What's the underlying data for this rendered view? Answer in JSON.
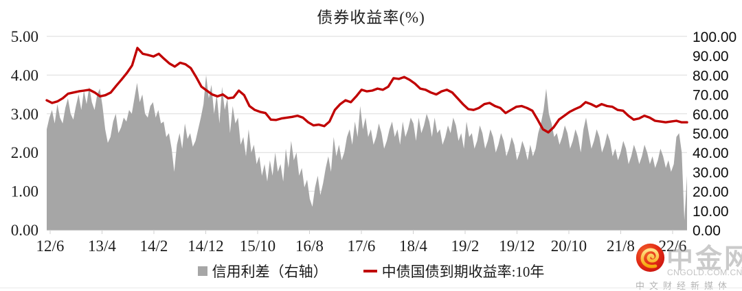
{
  "chart_data": {
    "type": "combo",
    "title": "债券收益率(%)",
    "legend_position": "bottom",
    "grid": "horizontal",
    "x_ticks": [
      "12/6",
      "13/4",
      "14/2",
      "14/12",
      "15/10",
      "16/8",
      "17/6",
      "18/4",
      "19/2",
      "19/12",
      "20/10",
      "21/8",
      "22/6"
    ],
    "left_axis": {
      "min": 0,
      "max": 5,
      "step": 1,
      "labels": [
        "5.00",
        "4.00",
        "3.00",
        "2.00",
        "1.00",
        "0.00"
      ]
    },
    "right_axis": {
      "min": 0,
      "max": 100,
      "step": 10,
      "labels": [
        "100.00",
        "90.00",
        "80.00",
        "70.00",
        "60.00",
        "50.00",
        "40.00",
        "30.00",
        "20.00",
        "10.00",
        "0.00"
      ]
    },
    "series": [
      {
        "name": "信用利差（右轴）",
        "type": "area",
        "axis": "right",
        "color": "#A6A6A6",
        "values": [
          52,
          58,
          62,
          55,
          65,
          58,
          55,
          63,
          68,
          60,
          57,
          64,
          70,
          62,
          72,
          65,
          74,
          66,
          62,
          70,
          73,
          64,
          52,
          45,
          48,
          56,
          60,
          50,
          53,
          58,
          56,
          62,
          60,
          68,
          76,
          66,
          70,
          60,
          58,
          64,
          66,
          58,
          62,
          55,
          56,
          48,
          50,
          42,
          30,
          44,
          50,
          42,
          55,
          47,
          50,
          43,
          46,
          52,
          58,
          65,
          80,
          68,
          75,
          60,
          70,
          55,
          74,
          62,
          68,
          50,
          64,
          55,
          58,
          44,
          48,
          38,
          52,
          40,
          44,
          34,
          38,
          28,
          34,
          25,
          36,
          28,
          40,
          30,
          34,
          25,
          42,
          32,
          46,
          36,
          40,
          28,
          32,
          22,
          26,
          16,
          12,
          22,
          28,
          18,
          24,
          32,
          38,
          30,
          48,
          38,
          44,
          36,
          40,
          48,
          52,
          44,
          56,
          48,
          64,
          52,
          58,
          48,
          52,
          44,
          48,
          55,
          50,
          42,
          46,
          52,
          56,
          48,
          52,
          44,
          56,
          48,
          52,
          58,
          55,
          46,
          58,
          50,
          54,
          60,
          56,
          48,
          58,
          50,
          52,
          44,
          48,
          54,
          50,
          58,
          54,
          46,
          50,
          42,
          56,
          48,
          50,
          42,
          46,
          54,
          50,
          42,
          46,
          52,
          48,
          40,
          44,
          50,
          46,
          38,
          42,
          48,
          44,
          36,
          40,
          46,
          42,
          36,
          44,
          38,
          42,
          50,
          55,
          62,
          73,
          60,
          55,
          48,
          50,
          44,
          48,
          54,
          50,
          42,
          46,
          52,
          48,
          40,
          52,
          58,
          50,
          42,
          46,
          52,
          48,
          40,
          44,
          50,
          46,
          38,
          42,
          36,
          40,
          46,
          42,
          34,
          38,
          44,
          40,
          34,
          38,
          44,
          40,
          34,
          38,
          32,
          36,
          42,
          38,
          32,
          36,
          30,
          34,
          48,
          50,
          40,
          5,
          28
        ]
      },
      {
        "name": "中债国债到期收益率:10年",
        "type": "line",
        "axis": "left",
        "color": "#C00000",
        "values": [
          3.35,
          3.28,
          3.32,
          3.4,
          3.52,
          3.55,
          3.58,
          3.6,
          3.62,
          3.55,
          3.45,
          3.48,
          3.55,
          3.72,
          3.88,
          4.05,
          4.25,
          4.7,
          4.55,
          4.52,
          4.48,
          4.55,
          4.42,
          4.3,
          4.22,
          4.32,
          4.28,
          4.18,
          3.95,
          3.7,
          3.6,
          3.5,
          3.45,
          3.5,
          3.4,
          3.42,
          3.6,
          3.48,
          3.2,
          3.1,
          3.05,
          3.02,
          2.85,
          2.84,
          2.88,
          2.9,
          2.92,
          2.95,
          2.9,
          2.78,
          2.7,
          2.72,
          2.68,
          2.8,
          3.1,
          3.25,
          3.35,
          3.3,
          3.45,
          3.62,
          3.58,
          3.6,
          3.65,
          3.62,
          3.7,
          3.92,
          3.9,
          3.95,
          3.88,
          3.78,
          3.65,
          3.62,
          3.55,
          3.5,
          3.58,
          3.62,
          3.55,
          3.4,
          3.25,
          3.12,
          3.1,
          3.15,
          3.25,
          3.28,
          3.2,
          3.15,
          3.02,
          3.1,
          3.18,
          3.2,
          3.15,
          3.08,
          2.85,
          2.6,
          2.52,
          2.65,
          2.85,
          2.95,
          3.05,
          3.12,
          3.18,
          3.3,
          3.25,
          3.18,
          3.25,
          3.2,
          3.18,
          3.1,
          3.08,
          2.95,
          2.85,
          2.88,
          2.95,
          2.9,
          2.82,
          2.8,
          2.78,
          2.8,
          2.82,
          2.78,
          2.78
        ]
      }
    ]
  },
  "watermark": {
    "site_name": "中金网",
    "domain": "CNGOLD.COM.CN",
    "tagline": "中文财经新媒体"
  }
}
